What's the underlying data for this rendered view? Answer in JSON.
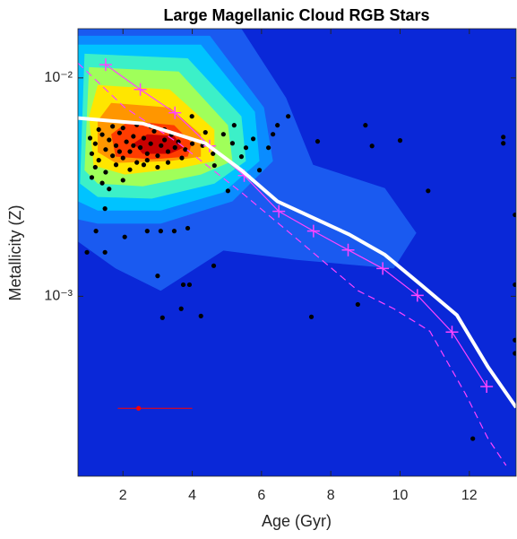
{
  "chart_data": {
    "type": "contour",
    "title": "Large Magellanic Cloud RGB Stars",
    "xlabel": "Age (Gyr)",
    "ylabel": "Metallicity (Z)",
    "xlim": [
      0.7,
      13.35
    ],
    "ylim": [
      0.00015,
      0.0168
    ],
    "ylog": true,
    "xticks": [
      2,
      4,
      6,
      8,
      10,
      12
    ],
    "yticks": [
      {
        "value": 0.01,
        "label": "10⁻²"
      },
      {
        "value": 0.001,
        "label": "10⁻³"
      }
    ],
    "background": "#0a28d8",
    "contours": [
      {
        "color": "#1a5af0",
        "polygon": [
          [
            0.7,
            0.0168
          ],
          [
            5.42,
            0.0168
          ],
          [
            6.71,
            0.0081
          ],
          [
            7.49,
            0.004
          ],
          [
            9.56,
            0.00313
          ],
          [
            10.47,
            0.00195
          ],
          [
            9.82,
            0.00134
          ],
          [
            6.97,
            0.00147
          ],
          [
            4.9,
            0.00162
          ],
          [
            3.09,
            0.00106
          ],
          [
            1.79,
            0.00134
          ],
          [
            0.7,
            0.00178
          ]
        ]
      },
      {
        "color": "#0a8cff",
        "polygon": [
          [
            0.7,
            0.0156
          ],
          [
            4.51,
            0.0156
          ],
          [
            6.07,
            0.00732
          ],
          [
            6.33,
            0.00416
          ],
          [
            5.16,
            0.00272
          ],
          [
            3.09,
            0.00215
          ],
          [
            1.27,
            0.00215
          ],
          [
            0.7,
            0.00225
          ]
        ]
      },
      {
        "color": "#00c3ff",
        "polygon": [
          [
            0.7,
            0.0142
          ],
          [
            4.25,
            0.0142
          ],
          [
            5.81,
            0.00699
          ],
          [
            5.94,
            0.00416
          ],
          [
            4.9,
            0.00299
          ],
          [
            3.09,
            0.00247
          ],
          [
            1.27,
            0.00247
          ],
          [
            0.7,
            0.00272
          ]
        ]
      },
      {
        "color": "#3cf0c8",
        "polygon": [
          [
            0.89,
            0.0129
          ],
          [
            3.87,
            0.0123
          ],
          [
            5.42,
            0.00667
          ],
          [
            5.55,
            0.00416
          ],
          [
            4.64,
            0.00328
          ],
          [
            2.83,
            0.0028
          ],
          [
            1.27,
            0.00285
          ],
          [
            0.76,
            0.00328
          ]
        ]
      },
      {
        "color": "#a0ff5a",
        "polygon": [
          [
            1.02,
            0.0112
          ],
          [
            3.61,
            0.0107
          ],
          [
            5.03,
            0.00607
          ],
          [
            5.16,
            0.00416
          ],
          [
            4.25,
            0.00361
          ],
          [
            2.57,
            0.00319
          ],
          [
            1.27,
            0.00328
          ],
          [
            0.89,
            0.00378
          ]
        ]
      },
      {
        "color": "#ffe600",
        "polygon": [
          [
            1.27,
            0.00927
          ],
          [
            3.35,
            0.00885
          ],
          [
            4.64,
            0.00579
          ],
          [
            4.64,
            0.00416
          ],
          [
            3.61,
            0.00385
          ],
          [
            2.05,
            0.00361
          ],
          [
            1.15,
            0.00397
          ],
          [
            1.02,
            0.00667
          ]
        ]
      },
      {
        "color": "#ff9600",
        "polygon": [
          [
            1.66,
            0.00768
          ],
          [
            3.35,
            0.00732
          ],
          [
            4.25,
            0.00552
          ],
          [
            4.25,
            0.00436
          ],
          [
            3.35,
            0.00416
          ],
          [
            1.79,
            0.00408
          ],
          [
            1.27,
            0.00457
          ],
          [
            1.27,
            0.00636
          ]
        ]
      },
      {
        "color": "#ff3c00",
        "polygon": [
          [
            2.18,
            0.00636
          ],
          [
            3.48,
            0.00607
          ],
          [
            3.99,
            0.00502
          ],
          [
            3.87,
            0.00436
          ],
          [
            2.83,
            0.00424
          ],
          [
            1.79,
            0.00436
          ],
          [
            1.66,
            0.00552
          ]
        ]
      },
      {
        "color": "#c80000",
        "polygon": [
          [
            2.7,
            0.00552
          ],
          [
            3.48,
            0.00542
          ],
          [
            3.74,
            0.00479
          ],
          [
            3.35,
            0.00449
          ],
          [
            2.57,
            0.00449
          ],
          [
            2.31,
            0.00502
          ]
        ]
      }
    ],
    "scatter": {
      "color": "#000000",
      "points": [
        [
          6.77,
          0.00667
        ],
        [
          7.62,
          0.00512
        ],
        [
          9.0,
          0.00607
        ],
        [
          9.19,
          0.00488
        ],
        [
          10.0,
          0.00517
        ],
        [
          10.81,
          0.00304
        ],
        [
          12.98,
          0.00536
        ],
        [
          12.98,
          0.00502
        ],
        [
          13.32,
          0.00236
        ],
        [
          13.32,
          0.00113
        ],
        [
          13.32,
          0.00063
        ],
        [
          13.32,
          0.000548
        ],
        [
          12.1,
          0.000223
        ],
        [
          8.78,
          0.000918
        ],
        [
          7.44,
          0.000805
        ],
        [
          4.62,
          0.00138
        ],
        [
          4.25,
          0.000812
        ],
        [
          3.68,
          0.000877
        ],
        [
          3.14,
          0.000798
        ],
        [
          3.0,
          0.00124
        ],
        [
          3.74,
          0.00113
        ],
        [
          3.92,
          0.00113
        ],
        [
          1.48,
          0.00159
        ],
        [
          0.96,
          0.00159
        ],
        [
          2.05,
          0.00187
        ],
        [
          3.09,
          0.00199
        ],
        [
          3.48,
          0.00199
        ],
        [
          2.7,
          0.00199
        ],
        [
          1.22,
          0.00199
        ],
        [
          3.87,
          0.00205
        ],
        [
          1.48,
          0.00252
        ],
        [
          4.64,
          0.00397
        ],
        [
          5.03,
          0.00304
        ],
        [
          5.16,
          0.00502
        ],
        [
          5.42,
          0.00436
        ],
        [
          5.76,
          0.00526
        ],
        [
          5.94,
          0.00378
        ],
        [
          6.2,
          0.00479
        ],
        [
          6.46,
          0.00607
        ],
        [
          6.33,
          0.00552
        ],
        [
          4.38,
          0.00563
        ],
        [
          4.9,
          0.00552
        ],
        [
          5.21,
          0.00607
        ],
        [
          3.99,
          0.00667
        ],
        [
          5.55,
          0.00479
        ],
        [
          1.1,
          0.0045
        ],
        [
          1.2,
          0.005
        ],
        [
          1.3,
          0.0042
        ],
        [
          1.4,
          0.0055
        ],
        [
          1.5,
          0.0047
        ],
        [
          1.6,
          0.0052
        ],
        [
          1.7,
          0.0044
        ],
        [
          1.8,
          0.0049
        ],
        [
          1.9,
          0.0056
        ],
        [
          2.0,
          0.0043
        ],
        [
          2.1,
          0.0051
        ],
        [
          2.2,
          0.0046
        ],
        [
          2.3,
          0.0054
        ],
        [
          2.4,
          0.0041
        ],
        [
          2.5,
          0.0048
        ],
        [
          2.6,
          0.0053
        ],
        [
          2.7,
          0.0045
        ],
        [
          2.8,
          0.005
        ],
        [
          2.9,
          0.0057
        ],
        [
          3.0,
          0.0044
        ],
        [
          3.1,
          0.0049
        ],
        [
          3.2,
          0.0052
        ],
        [
          3.3,
          0.0046
        ],
        [
          3.4,
          0.0055
        ],
        [
          3.5,
          0.0048
        ],
        [
          3.6,
          0.0051
        ],
        [
          3.8,
          0.0047
        ],
        [
          4.0,
          0.005
        ],
        [
          1.2,
          0.0039
        ],
        [
          1.5,
          0.0037
        ],
        [
          1.8,
          0.004
        ],
        [
          2.2,
          0.0038
        ],
        [
          2.6,
          0.004
        ],
        [
          3.0,
          0.0039
        ],
        [
          1.3,
          0.0058
        ],
        [
          1.7,
          0.006
        ],
        [
          2.0,
          0.0059
        ],
        [
          2.4,
          0.0061
        ],
        [
          2.8,
          0.006
        ],
        [
          3.2,
          0.0058
        ],
        [
          1.1,
          0.0035
        ],
        [
          1.4,
          0.0033
        ],
        [
          2.0,
          0.0034
        ],
        [
          1.6,
          0.0031
        ],
        [
          2.3,
          0.0049
        ],
        [
          1.9,
          0.0046
        ],
        [
          2.7,
          0.0042
        ],
        [
          3.3,
          0.0041
        ],
        [
          1.05,
          0.0053
        ],
        [
          4.3,
          0.0049
        ],
        [
          4.6,
          0.0045
        ],
        [
          3.7,
          0.0043
        ]
      ]
    },
    "lines": [
      {
        "color": "#ff44ff",
        "style": "dashed",
        "width": 1.2,
        "x": [
          0.7,
          2.05,
          3.61,
          5.42,
          6.97,
          8.79,
          9.82,
          10.86,
          11.89,
          12.54,
          13.06
        ],
        "values": [
          0.0117,
          0.00732,
          0.00502,
          0.00299,
          0.00186,
          0.00106,
          0.000877,
          0.000692,
          0.000357,
          0.000223,
          0.000168
        ]
      },
      {
        "color": "#ff44ff",
        "style": "solid",
        "marker": "+",
        "width": 1.2,
        "x": [
          1.5,
          2.5,
          3.5,
          4.5,
          5.5,
          6.5,
          7.5,
          8.5,
          9.5,
          10.5,
          11.5,
          12.5
        ],
        "values": [
          0.0115,
          0.00885,
          0.00692,
          0.00488,
          0.00357,
          0.00245,
          0.00199,
          0.00163,
          0.00134,
          0.00101,
          0.000686,
          0.000386
        ]
      },
      {
        "color": "#ffffff",
        "style": "solid",
        "width": 4,
        "x": [
          0.7,
          2.57,
          4.38,
          5.42,
          6.46,
          8.53,
          9.56,
          10.6,
          11.64,
          12.54,
          13.35
        ],
        "values": [
          0.00655,
          0.00618,
          0.00502,
          0.00378,
          0.00272,
          0.00192,
          0.00155,
          0.00113,
          0.00082,
          0.000474,
          0.00031
        ]
      }
    ],
    "error_bar": {
      "color": "#ff0000",
      "x": 2.45,
      "y": 0.000307,
      "x_range": [
        1.85,
        4.0
      ]
    }
  }
}
